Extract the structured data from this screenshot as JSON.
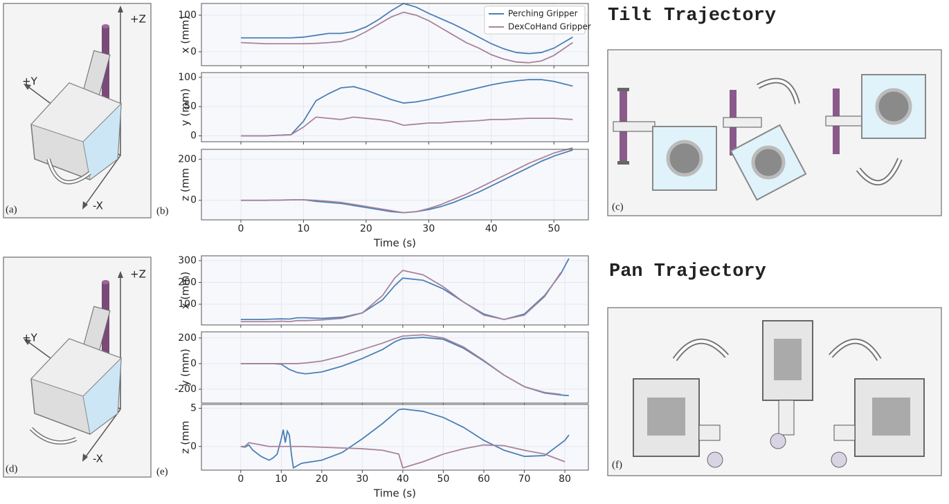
{
  "figure": {
    "tilt_title": "Tilt Trajectory",
    "pan_title": "Pan Trajectory",
    "panel_labels": [
      "(a)",
      "(b)",
      "(c)",
      "(d)",
      "(e)",
      "(f)"
    ],
    "axis_labels": [
      "+Z",
      "+Y",
      "-X"
    ]
  },
  "chart_data": [
    {
      "type": "line",
      "ylabel": "x (mm)",
      "legend": "upper right",
      "x": [
        0,
        4,
        8,
        10,
        12,
        14,
        16,
        18,
        20,
        22,
        24,
        26,
        28,
        30,
        32,
        34,
        36,
        38,
        40,
        42,
        44,
        46,
        48,
        50,
        53
      ],
      "series": [
        {
          "name": "Perching Gripper",
          "color": "#4a7fb5",
          "values": [
            38,
            38,
            38,
            40,
            45,
            50,
            50,
            55,
            68,
            88,
            112,
            132,
            122,
            105,
            90,
            75,
            58,
            40,
            22,
            8,
            -2,
            -5,
            -2,
            10,
            40
          ]
        },
        {
          "name": "DexCoHand Gripper",
          "color": "#a8839b",
          "values": [
            25,
            22,
            22,
            22,
            23,
            25,
            28,
            38,
            55,
            75,
            95,
            108,
            100,
            85,
            65,
            45,
            25,
            10,
            -8,
            -20,
            -28,
            -30,
            -25,
            -10,
            25
          ]
        }
      ],
      "xlim": [
        -6.3,
        55.5
      ],
      "ylim": [
        -38,
        132
      ],
      "xticks": [
        0,
        10,
        20,
        30,
        40,
        50
      ],
      "yticks": [
        0,
        100
      ],
      "grid": true
    },
    {
      "type": "line",
      "ylabel": "y (mm)",
      "x": [
        0,
        4,
        8,
        10,
        12,
        14,
        16,
        18,
        20,
        22,
        24,
        26,
        28,
        30,
        32,
        34,
        36,
        38,
        40,
        42,
        44,
        46,
        48,
        50,
        53
      ],
      "series": [
        {
          "color": "#4a7fb5",
          "values": [
            0,
            0,
            2,
            25,
            60,
            72,
            82,
            84,
            78,
            70,
            62,
            56,
            58,
            62,
            67,
            72,
            77,
            82,
            87,
            91,
            94,
            96,
            96,
            93,
            85
          ]
        },
        {
          "color": "#a8839b",
          "values": [
            0,
            0,
            2,
            15,
            32,
            30,
            28,
            32,
            30,
            28,
            25,
            18,
            20,
            22,
            22,
            24,
            25,
            26,
            28,
            28,
            29,
            30,
            30,
            30,
            28
          ]
        }
      ],
      "xlim": [
        -6.3,
        55.5
      ],
      "ylim": [
        -10,
        108
      ],
      "xticks": [
        0,
        10,
        20,
        30,
        40,
        50
      ],
      "yticks": [
        0,
        50,
        100
      ],
      "grid": true
    },
    {
      "type": "line",
      "ylabel": "z  (mm",
      "xlabel": "Time (s)",
      "x": [
        0,
        4,
        8,
        10,
        12,
        14,
        16,
        18,
        20,
        22,
        24,
        26,
        28,
        30,
        32,
        34,
        36,
        38,
        40,
        42,
        44,
        46,
        48,
        50,
        53
      ],
      "series": [
        {
          "color": "#4a7fb5",
          "values": [
            0,
            0,
            2,
            3,
            -5,
            -10,
            -15,
            -25,
            -35,
            -45,
            -55,
            -60,
            -55,
            -45,
            -30,
            -10,
            15,
            40,
            70,
            100,
            130,
            160,
            190,
            215,
            245
          ]
        },
        {
          "color": "#a8839b",
          "values": [
            0,
            0,
            2,
            3,
            0,
            -5,
            -10,
            -20,
            -30,
            -40,
            -50,
            -60,
            -55,
            -40,
            -20,
            5,
            30,
            60,
            90,
            120,
            150,
            180,
            205,
            230,
            255
          ]
        }
      ],
      "xlim": [
        -6.3,
        55.5
      ],
      "ylim": [
        -95,
        248
      ],
      "xticks": [
        0,
        10,
        20,
        30,
        40,
        50
      ],
      "yticks": [
        0,
        200
      ],
      "grid": true
    },
    {
      "type": "line",
      "ylabel": "x (mm)",
      "x": [
        0,
        5,
        8,
        10,
        12,
        14,
        16,
        20,
        25,
        30,
        35,
        38,
        40,
        45,
        50,
        55,
        60,
        65,
        70,
        75,
        79,
        81
      ],
      "series": [
        {
          "color": "#4a7fb5",
          "values": [
            30,
            30,
            32,
            33,
            32,
            38,
            38,
            35,
            40,
            60,
            120,
            185,
            220,
            210,
            170,
            110,
            55,
            30,
            55,
            140,
            240,
            310
          ]
        },
        {
          "color": "#a8839b",
          "values": [
            20,
            20,
            20,
            22,
            20,
            25,
            25,
            28,
            35,
            60,
            140,
            220,
            255,
            235,
            180,
            110,
            50,
            30,
            50,
            135,
            245,
            null
          ]
        }
      ],
      "xlim": [
        -9.7,
        85.8
      ],
      "ylim": [
        5,
        322
      ],
      "xticks": [
        0,
        10,
        20,
        30,
        40,
        50,
        60,
        70,
        80
      ],
      "yticks": [
        100,
        200,
        300
      ],
      "grid": true
    },
    {
      "type": "line",
      "ylabel": "y (mm)",
      "x": [
        0,
        5,
        8,
        10,
        12,
        14,
        16,
        20,
        25,
        30,
        35,
        38,
        40,
        45,
        50,
        55,
        60,
        65,
        70,
        75,
        79,
        81
      ],
      "series": [
        {
          "color": "#4a7fb5",
          "values": [
            0,
            0,
            0,
            -5,
            -45,
            -70,
            -80,
            -65,
            -20,
            40,
            110,
            170,
            195,
            205,
            190,
            120,
            20,
            -90,
            -180,
            -230,
            -245,
            -250
          ]
        },
        {
          "color": "#a8839b",
          "values": [
            0,
            0,
            0,
            0,
            0,
            0,
            5,
            20,
            60,
            110,
            160,
            195,
            215,
            225,
            200,
            130,
            25,
            -90,
            -180,
            -225,
            -240,
            null
          ]
        }
      ],
      "xlim": [
        -9.7,
        85.8
      ],
      "ylim": [
        -308,
        248
      ],
      "xticks": [
        0,
        10,
        20,
        30,
        40,
        50,
        60,
        70,
        80
      ],
      "yticks": [
        -200,
        0,
        200
      ],
      "grid": true
    },
    {
      "type": "line",
      "ylabel": "z  (mm",
      "xlabel": "Time (s)",
      "x": [
        0,
        1,
        2,
        3,
        5,
        7,
        8,
        9,
        10,
        10.5,
        11,
        11.5,
        12,
        12.5,
        13,
        14,
        15,
        20,
        25,
        30,
        35,
        39,
        40,
        45,
        50,
        55,
        60,
        65,
        70,
        75,
        80,
        81
      ],
      "series": [
        {
          "color": "#4a7fb5",
          "values": [
            0,
            -0.1,
            0.2,
            -0.5,
            -1.3,
            -1.8,
            -1.5,
            -1,
            1,
            2.2,
            0.5,
            2,
            1.5,
            -1,
            -2.8,
            -2.5,
            -2.2,
            -1.8,
            -0.8,
            1,
            3,
            4.8,
            4.9,
            4.6,
            3.8,
            2.5,
            0.8,
            -0.5,
            -1.3,
            -1.2,
            0.8,
            1.5
          ]
        },
        {
          "color": "#a8839b",
          "values": [
            0,
            0,
            0.5,
            0.4,
            0.2,
            0,
            0,
            0,
            0,
            0,
            0,
            0,
            0,
            0,
            0,
            0,
            0,
            -0.1,
            -0.2,
            -0.3,
            -0.5,
            -1,
            -2.8,
            -2,
            -1,
            -0.3,
            0.2,
            0.1,
            -0.5,
            -1,
            -2,
            null
          ]
        }
      ],
      "xlim": [
        -9.7,
        85.8
      ],
      "ylim": [
        -3.1,
        5.5
      ],
      "xticks": [
        0,
        10,
        20,
        30,
        40,
        50,
        60,
        70,
        80
      ],
      "yticks": [
        0,
        5
      ],
      "grid": true
    }
  ]
}
